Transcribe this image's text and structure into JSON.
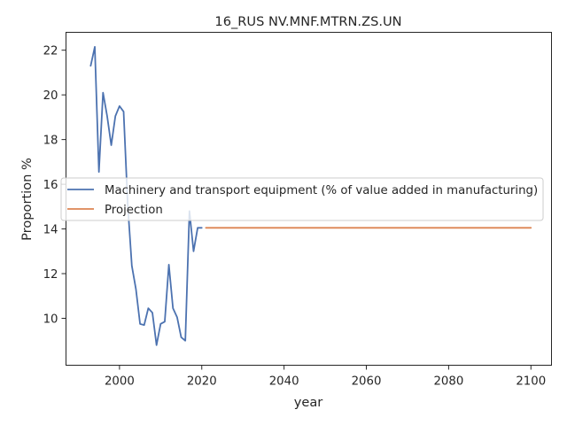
{
  "chart_data": {
    "type": "line",
    "title": "16_RUS NV.MNF.MTRN.ZS.UN",
    "xlabel": "year",
    "ylabel": "Proportion %",
    "xlim": [
      1987,
      2105
    ],
    "ylim": [
      7.9,
      22.8
    ],
    "xticks": [
      2000,
      2020,
      2040,
      2060,
      2080,
      2100
    ],
    "yticks": [
      10,
      12,
      14,
      16,
      18,
      20,
      22
    ],
    "grid": false,
    "legend_position": "center-left",
    "series": [
      {
        "name": "Machinery and transport equipment (% of value added in manufacturing)",
        "color": "#4c72b0",
        "x": [
          1993,
          1994,
          1995,
          1996,
          1997,
          1998,
          1999,
          2000,
          2001,
          2002,
          2003,
          2004,
          2005,
          2006,
          2007,
          2008,
          2009,
          2010,
          2011,
          2012,
          2013,
          2014,
          2015,
          2016,
          2017,
          2018,
          2019,
          2020
        ],
        "y": [
          21.3,
          22.15,
          16.55,
          20.1,
          19.05,
          17.75,
          19.05,
          19.5,
          19.25,
          15.1,
          12.35,
          11.3,
          9.75,
          9.7,
          10.45,
          10.25,
          8.8,
          9.75,
          9.85,
          12.4,
          10.45,
          10.05,
          9.15,
          9.0,
          14.8,
          13.0,
          14.05,
          14.05
        ]
      },
      {
        "name": "Projection",
        "color": "#dd8452",
        "x": [
          2021,
          2100
        ],
        "y": [
          14.05,
          14.05
        ]
      }
    ]
  }
}
